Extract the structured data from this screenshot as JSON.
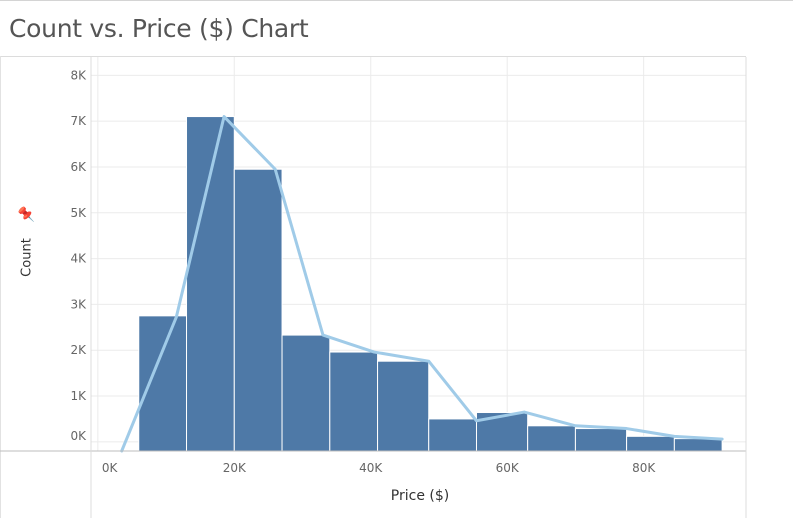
{
  "title": "Count vs. Price ($) Chart",
  "pin_icon": "pin-icon",
  "colors": {
    "bar": "#4e79a7",
    "line": "#a0cbe8",
    "grid": "#ebebeb",
    "axis": "#bdbdbd"
  },
  "chart_data": {
    "type": "bar",
    "title": "Count vs. Price ($) Chart",
    "xlabel": "Price ($)",
    "ylabel": "Count",
    "xlim": [
      -1000,
      95000
    ],
    "ylim": [
      -200,
      8400
    ],
    "x_ticks": [
      0,
      20000,
      40000,
      60000,
      80000
    ],
    "x_tick_labels": [
      "0K",
      "20K",
      "40K",
      "60K",
      "80K"
    ],
    "y_ticks": [
      0,
      1000,
      2000,
      3000,
      4000,
      5000,
      6000,
      7000,
      8000
    ],
    "y_tick_labels": [
      "0K",
      "1K",
      "2K",
      "3K",
      "4K",
      "5K",
      "6K",
      "7K",
      "8K"
    ],
    "grid": true,
    "bins": [
      {
        "x0": 6000,
        "x1": 13000,
        "count": 2750
      },
      {
        "x0": 13000,
        "x1": 20000,
        "count": 7100
      },
      {
        "x0": 20000,
        "x1": 27000,
        "count": 5950
      },
      {
        "x0": 27000,
        "x1": 34000,
        "count": 2330
      },
      {
        "x0": 34000,
        "x1": 41000,
        "count": 1960
      },
      {
        "x0": 41000,
        "x1": 48500,
        "count": 1760
      },
      {
        "x0": 48500,
        "x1": 55500,
        "count": 500
      },
      {
        "x0": 55500,
        "x1": 63000,
        "count": 640
      },
      {
        "x0": 63000,
        "x1": 70000,
        "count": 350
      },
      {
        "x0": 70000,
        "x1": 77500,
        "count": 290
      },
      {
        "x0": 77500,
        "x1": 84500,
        "count": 120
      },
      {
        "x0": 84500,
        "x1": 91500,
        "count": 70
      }
    ],
    "line": {
      "x": [
        3500,
        11500,
        18500,
        26000,
        33000,
        40500,
        48500,
        55500,
        62500,
        70000,
        77500,
        84500,
        91500
      ],
      "y": [
        -200,
        2720,
        7100,
        5950,
        2330,
        1960,
        1760,
        460,
        650,
        350,
        290,
        120,
        60
      ]
    }
  }
}
